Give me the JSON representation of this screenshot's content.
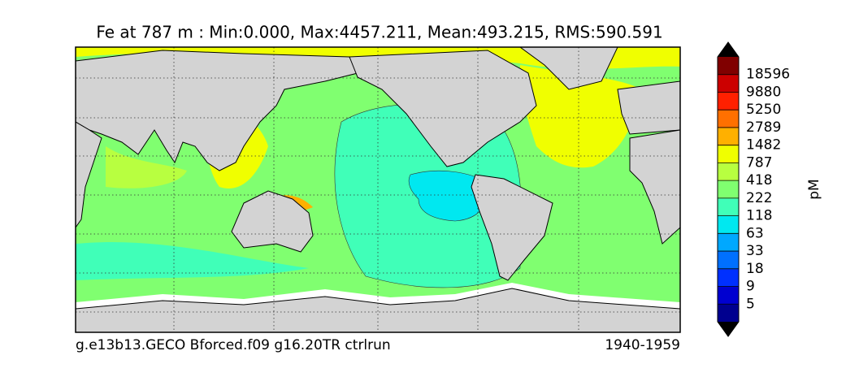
{
  "title": "Fe at 787 m : Min:0.000, Max:4457.211, Mean:493.215, RMS:590.591",
  "footer": {
    "left": "g.e13b13.GECO Bforced.f09 g16.20TR ctrlrun",
    "right": "1940-1959"
  },
  "colorbar": {
    "label": "pM",
    "ticks": [
      5,
      9,
      18,
      33,
      63,
      118,
      222,
      418,
      787,
      1482,
      2789,
      5250,
      9880,
      18596
    ],
    "colors": [
      "#00008f",
      "#0000d0",
      "#0030ff",
      "#0070ff",
      "#00a8ff",
      "#00e8f0",
      "#40ffb8",
      "#80ff70",
      "#b8ff40",
      "#f0ff00",
      "#ffb000",
      "#ff7000",
      "#ff2000",
      "#cc0000",
      "#800000"
    ],
    "extend_color": "#000000"
  }
}
